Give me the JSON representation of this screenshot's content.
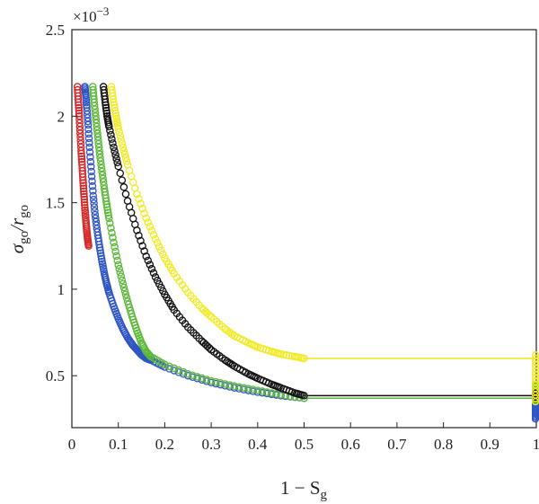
{
  "chart_data": {
    "type": "scatter",
    "title": "",
    "xlabel": {
      "prefix": "1 − S",
      "sub": "g"
    },
    "ylabel": {
      "part1": "σ",
      "sub1": "go",
      "part2": "/r",
      "sub2": "go"
    },
    "y_scale_label": "×10",
    "y_scale_exponent": "−3",
    "xlim": [
      0,
      1
    ],
    "ylim": [
      0.2,
      2.5
    ],
    "x_ticks": [
      0,
      0.1,
      0.2,
      0.3,
      0.4,
      0.5,
      0.6,
      0.7,
      0.8,
      0.9,
      1
    ],
    "x_tick_labels": [
      "0",
      "0.1",
      "0.2",
      "0.3",
      "0.4",
      "0.5",
      "0.6",
      "0.7",
      "0.8",
      "0.9",
      "1"
    ],
    "y_ticks": [
      0.5,
      1,
      1.5,
      2,
      2.5
    ],
    "y_tick_labels": [
      "0.5",
      "1",
      "1.5",
      "2",
      "2.5"
    ],
    "grid": false,
    "legend": "none",
    "series": [
      {
        "color": "#d42a2a",
        "points": [
          [
            0.012,
            2.17
          ],
          [
            0.014,
            2.08
          ],
          [
            0.016,
            2.0
          ],
          [
            0.018,
            1.9
          ],
          [
            0.02,
            1.8
          ],
          [
            0.022,
            1.72
          ],
          [
            0.024,
            1.63
          ],
          [
            0.026,
            1.55
          ],
          [
            0.028,
            1.47
          ],
          [
            0.03,
            1.4
          ],
          [
            0.032,
            1.34
          ],
          [
            0.034,
            1.29
          ],
          [
            0.036,
            1.25
          ]
        ]
      },
      {
        "color": "#2f55c4",
        "points": [
          [
            0.028,
            2.17
          ],
          [
            0.03,
            2.12
          ],
          [
            0.032,
            2.05
          ],
          [
            0.035,
            1.95
          ],
          [
            0.038,
            1.82
          ],
          [
            0.042,
            1.68
          ],
          [
            0.046,
            1.54
          ],
          [
            0.05,
            1.43
          ],
          [
            0.055,
            1.33
          ],
          [
            0.06,
            1.24
          ],
          [
            0.065,
            1.16
          ],
          [
            0.07,
            1.09
          ],
          [
            0.075,
            1.03
          ],
          [
            0.08,
            0.98
          ],
          [
            0.09,
            0.9
          ],
          [
            0.1,
            0.83
          ],
          [
            0.11,
            0.77
          ],
          [
            0.12,
            0.72
          ],
          [
            0.13,
            0.68
          ],
          [
            0.14,
            0.65
          ],
          [
            0.15,
            0.62
          ],
          [
            0.16,
            0.6
          ],
          [
            0.17,
            0.59
          ],
          [
            0.2,
            0.55
          ],
          [
            0.25,
            0.5
          ],
          [
            0.3,
            0.46
          ],
          [
            0.35,
            0.43
          ],
          [
            0.4,
            0.405
          ],
          [
            0.45,
            0.385
          ],
          [
            0.5,
            0.37
          ]
        ],
        "endpoint": {
          "x": 1,
          "range": [
            0.25,
            0.38
          ]
        }
      },
      {
        "color": "#5db83a",
        "points": [
          [
            0.045,
            2.17
          ],
          [
            0.048,
            2.08
          ],
          [
            0.052,
            1.98
          ],
          [
            0.056,
            1.88
          ],
          [
            0.06,
            1.78
          ],
          [
            0.065,
            1.68
          ],
          [
            0.07,
            1.58
          ],
          [
            0.075,
            1.49
          ],
          [
            0.08,
            1.41
          ],
          [
            0.09,
            1.27
          ],
          [
            0.1,
            1.14
          ],
          [
            0.11,
            1.03
          ],
          [
            0.12,
            0.93
          ],
          [
            0.13,
            0.84
          ],
          [
            0.14,
            0.76
          ],
          [
            0.15,
            0.69
          ],
          [
            0.16,
            0.64
          ],
          [
            0.17,
            0.61
          ],
          [
            0.2,
            0.565
          ],
          [
            0.25,
            0.51
          ],
          [
            0.3,
            0.47
          ],
          [
            0.35,
            0.44
          ],
          [
            0.4,
            0.415
          ],
          [
            0.45,
            0.39
          ],
          [
            0.5,
            0.37
          ]
        ],
        "endpoint": {
          "x": 1,
          "range": [
            0.35,
            0.45
          ]
        }
      },
      {
        "color": "#111111",
        "points": [
          [
            0.068,
            2.17
          ],
          [
            0.072,
            2.08
          ],
          [
            0.076,
            2.0
          ],
          [
            0.08,
            1.94
          ],
          [
            0.09,
            1.82
          ],
          [
            0.1,
            1.71
          ],
          [
            0.12,
            1.51
          ],
          [
            0.14,
            1.34
          ],
          [
            0.16,
            1.19
          ],
          [
            0.18,
            1.07
          ],
          [
            0.2,
            0.97
          ],
          [
            0.22,
            0.88
          ],
          [
            0.25,
            0.78
          ],
          [
            0.28,
            0.7
          ],
          [
            0.3,
            0.65
          ],
          [
            0.33,
            0.59
          ],
          [
            0.35,
            0.555
          ],
          [
            0.38,
            0.51
          ],
          [
            0.4,
            0.485
          ],
          [
            0.43,
            0.45
          ],
          [
            0.45,
            0.43
          ],
          [
            0.48,
            0.4
          ],
          [
            0.5,
            0.385
          ]
        ],
        "endpoint": {
          "x": 1,
          "range": [
            0.37,
            0.4
          ]
        }
      },
      {
        "color": "#f1ea2a",
        "points": [
          [
            0.085,
            2.17
          ],
          [
            0.09,
            2.08
          ],
          [
            0.095,
            2.0
          ],
          [
            0.1,
            1.93
          ],
          [
            0.11,
            1.82
          ],
          [
            0.12,
            1.72
          ],
          [
            0.14,
            1.55
          ],
          [
            0.16,
            1.41
          ],
          [
            0.18,
            1.29
          ],
          [
            0.2,
            1.18
          ],
          [
            0.22,
            1.09
          ],
          [
            0.25,
            0.98
          ],
          [
            0.28,
            0.89
          ],
          [
            0.3,
            0.84
          ],
          [
            0.33,
            0.77
          ],
          [
            0.35,
            0.73
          ],
          [
            0.38,
            0.69
          ],
          [
            0.4,
            0.665
          ],
          [
            0.43,
            0.64
          ],
          [
            0.45,
            0.625
          ],
          [
            0.48,
            0.61
          ],
          [
            0.5,
            0.6
          ]
        ],
        "endpoint": {
          "x": 1,
          "range": [
            0.35,
            0.62
          ]
        }
      }
    ],
    "horizontal_lines": [
      {
        "color": "#f1ea2a",
        "y": 0.6,
        "x": [
          0.5,
          1
        ]
      },
      {
        "color": "#111111",
        "y": 0.385,
        "x": [
          0.5,
          1
        ]
      },
      {
        "color": "#5db83a",
        "y": 0.37,
        "x": [
          0.5,
          1
        ]
      }
    ]
  }
}
